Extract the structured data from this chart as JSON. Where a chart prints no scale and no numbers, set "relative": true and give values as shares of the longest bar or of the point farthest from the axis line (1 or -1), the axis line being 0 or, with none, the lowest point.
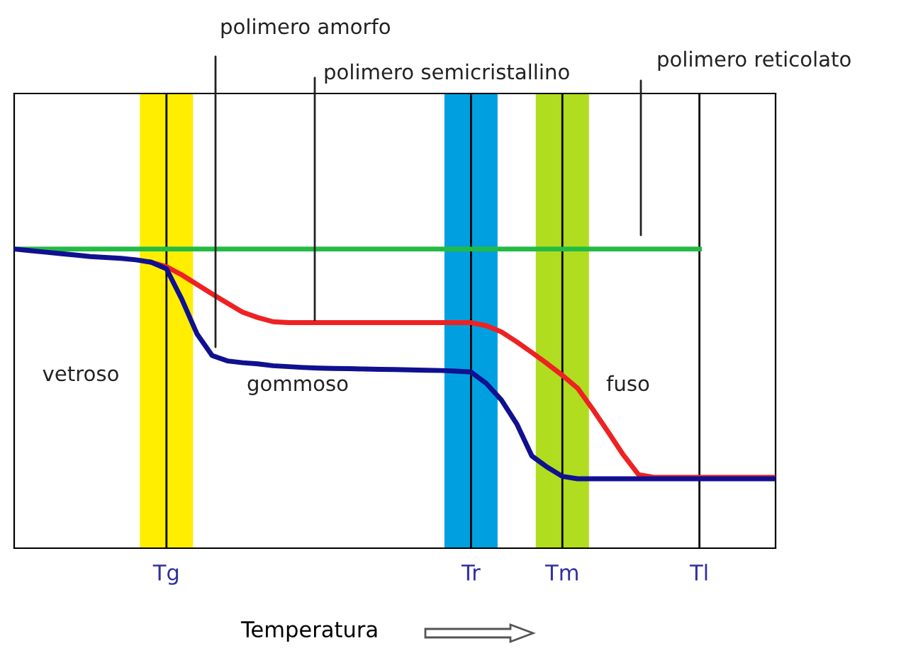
{
  "chart_data": {
    "type": "line",
    "relative": true,
    "xlabel": "Temperatura",
    "categories": [
      null,
      null,
      null,
      null,
      null,
      null,
      null,
      null,
      null,
      null,
      "Tg",
      null,
      null,
      null,
      null,
      null,
      null,
      null,
      null,
      null,
      null,
      null,
      null,
      null,
      null,
      null,
      null,
      null,
      null,
      null,
      "Tr",
      null,
      null,
      null,
      null,
      null,
      "Tm",
      null,
      null,
      null,
      null,
      null,
      null,
      null,
      null,
      "Tl",
      null,
      null,
      null,
      null,
      null
    ],
    "series": [
      {
        "color": "#22bb44",
        "values": [
          1.0,
          1.0,
          1.0,
          1.0,
          1.0,
          1.0,
          1.0,
          1.0,
          1.0,
          1.0,
          1.0,
          1.0,
          1.0,
          1.0,
          1.0,
          1.0,
          1.0,
          1.0,
          1.0,
          1.0,
          1.0,
          1.0,
          1.0,
          1.0,
          1.0,
          1.0,
          1.0,
          1.0,
          1.0,
          1.0,
          1.0,
          1.0,
          1.0,
          1.0,
          1.0,
          1.0,
          1.0,
          1.0,
          1.0,
          1.0,
          1.0,
          1.0,
          1.0,
          1.0,
          1.0,
          1.0,
          null,
          null,
          null,
          null,
          null
        ]
      },
      {
        "color": "#ee2222",
        "values": [
          null,
          null,
          null,
          null,
          null,
          null,
          null,
          null,
          null,
          0.956,
          0.941,
          0.914,
          0.882,
          0.85,
          0.819,
          0.789,
          0.771,
          0.757,
          0.754,
          0.754,
          0.754,
          0.754,
          0.754,
          0.754,
          0.754,
          0.754,
          0.754,
          0.754,
          0.754,
          0.754,
          0.754,
          0.744,
          0.723,
          0.69,
          0.654,
          0.617,
          0.578,
          0.535,
          0.464,
          0.389,
          0.312,
          0.246,
          0.237,
          0.237,
          0.237,
          0.237,
          0.237,
          0.237,
          0.237,
          0.237,
          0.237
        ]
      },
      {
        "color": "#101090",
        "values": [
          1.0,
          0.995,
          0.99,
          0.985,
          0.98,
          0.975,
          0.972,
          0.969,
          0.964,
          0.956,
          0.934,
          0.833,
          0.717,
          0.644,
          0.626,
          0.62,
          0.616,
          0.61,
          0.607,
          0.604,
          0.602,
          0.601,
          0.6,
          0.599,
          0.598,
          0.597,
          0.596,
          0.595,
          0.594,
          0.592,
          0.589,
          0.551,
          0.495,
          0.416,
          0.308,
          0.271,
          0.24,
          0.232,
          0.232,
          0.232,
          0.232,
          0.232,
          0.232,
          0.232,
          0.232,
          0.232,
          0.232,
          0.232,
          0.232,
          0.232,
          0.232
        ]
      }
    ],
    "ref_lines": [
      {
        "axis": "x",
        "value": "Tg",
        "color": "#ffee00"
      },
      {
        "axis": "x",
        "value": "Tr",
        "color": "#00a0e0"
      },
      {
        "axis": "x",
        "value": "Tm",
        "color": "#b0dd20"
      },
      {
        "axis": "x",
        "value": "Tg",
        "color": "#000000"
      },
      {
        "axis": "x",
        "value": "Tr",
        "color": "#000000"
      },
      {
        "axis": "x",
        "value": "Tm",
        "color": "#000000"
      },
      {
        "axis": "x",
        "value": "Tl",
        "color": "#000000"
      }
    ],
    "annotations": [
      "polimero amorfo",
      "polimero semicristallino",
      "polimero reticolato",
      "vetroso",
      "gommoso",
      "fuso"
    ],
    "grid": false,
    "legend": false,
    "marker": "none",
    "line_style": "solid"
  }
}
